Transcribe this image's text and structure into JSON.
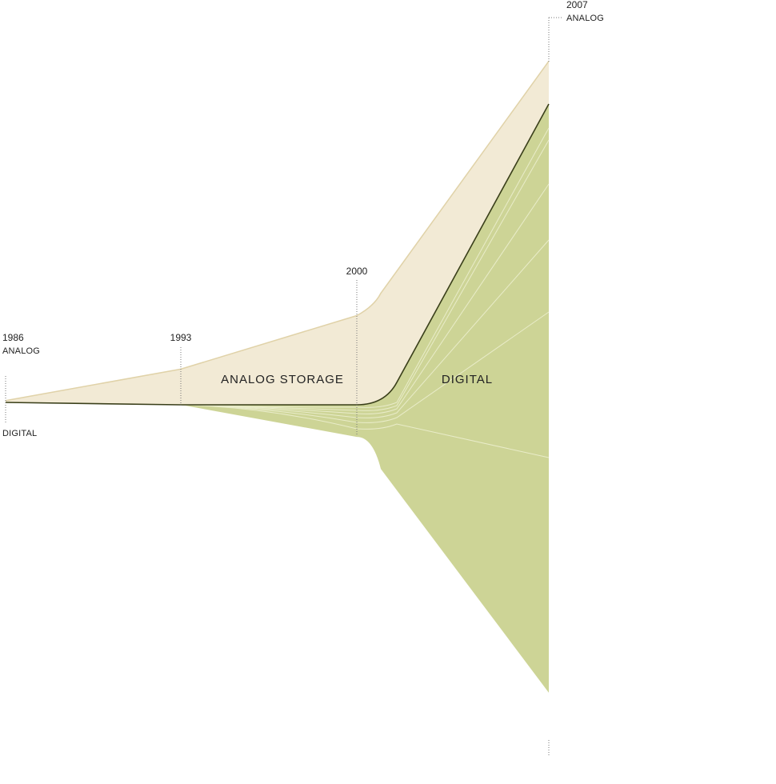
{
  "chart_data": {
    "type": "area",
    "x": [
      1986,
      1993,
      2000,
      2007
    ],
    "series": [
      {
        "name": "ANALOG STORAGE",
        "color": "#f2ead5",
        "edge_color": "#e0d2a8",
        "relative_width": [
          0.01,
          0.2,
          0.5,
          0.24
        ]
      },
      {
        "name": "DIGITAL",
        "color": "#cdd496",
        "edge_color": "#3a3f1a",
        "relative_width": [
          0.003,
          0.0,
          0.18,
          3.3
        ]
      }
    ],
    "annotations": [
      {
        "year": "1986",
        "labels": [
          "ANALOG",
          "DIGITAL"
        ]
      },
      {
        "year": "1993"
      },
      {
        "year": "2000"
      },
      {
        "year": "2007",
        "labels": [
          "ANALOG"
        ]
      }
    ],
    "title": "",
    "xlabel": "",
    "ylabel": "",
    "grid": false,
    "legend": "none"
  }
}
